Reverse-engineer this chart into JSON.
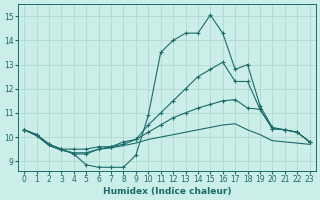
{
  "xlabel": "Humidex (Indice chaleur)",
  "xlim": [
    -0.5,
    23.5
  ],
  "ylim": [
    8.6,
    15.5
  ],
  "yticks": [
    9,
    10,
    11,
    12,
    13,
    14,
    15
  ],
  "xticks": [
    0,
    1,
    2,
    3,
    4,
    5,
    6,
    7,
    8,
    9,
    10,
    11,
    12,
    13,
    14,
    15,
    16,
    17,
    18,
    19,
    20,
    21,
    22,
    23
  ],
  "bg_color": "#cceee8",
  "grid_color": "#aad4cc",
  "line_color": "#1a6b6b",
  "line1_x": [
    0,
    1,
    2,
    3,
    4,
    5,
    6,
    7,
    8,
    9,
    10,
    11,
    12,
    13,
    14,
    15,
    16,
    17,
    18,
    19,
    20,
    21,
    22,
    23
  ],
  "line1_y": [
    10.3,
    10.1,
    9.7,
    9.5,
    9.3,
    8.85,
    8.75,
    8.75,
    8.75,
    9.25,
    10.9,
    13.5,
    14.0,
    14.3,
    14.3,
    15.05,
    14.3,
    12.8,
    13.0,
    11.3,
    10.4,
    10.3,
    10.2,
    9.8
  ],
  "line2_x": [
    0,
    1,
    2,
    3,
    4,
    5,
    6,
    7,
    8,
    9,
    10,
    11,
    12,
    13,
    14,
    15,
    16,
    17,
    18,
    19,
    20,
    21,
    22,
    23
  ],
  "line2_y": [
    10.3,
    10.1,
    9.7,
    9.5,
    9.3,
    9.3,
    9.5,
    9.6,
    9.8,
    9.9,
    10.5,
    11.0,
    11.5,
    12.0,
    12.5,
    12.8,
    13.1,
    12.3,
    12.3,
    11.15,
    10.35,
    10.3,
    10.2,
    9.8
  ],
  "line3_x": [
    0,
    1,
    2,
    3,
    4,
    5,
    6,
    7,
    8,
    9,
    10,
    11,
    12,
    13,
    14,
    15,
    16,
    17,
    18,
    19,
    20,
    21,
    22,
    23
  ],
  "line3_y": [
    10.3,
    10.1,
    9.7,
    9.5,
    9.5,
    9.5,
    9.6,
    9.6,
    9.7,
    9.9,
    10.2,
    10.5,
    10.8,
    11.0,
    11.2,
    11.35,
    11.5,
    11.55,
    11.2,
    11.15,
    10.35,
    10.3,
    10.2,
    9.8
  ],
  "line4_x": [
    0,
    1,
    2,
    3,
    4,
    5,
    6,
    7,
    8,
    9,
    10,
    11,
    12,
    13,
    14,
    15,
    16,
    17,
    18,
    19,
    20,
    21,
    22,
    23
  ],
  "line4_y": [
    10.3,
    10.05,
    9.65,
    9.45,
    9.35,
    9.35,
    9.5,
    9.55,
    9.65,
    9.75,
    9.9,
    10.0,
    10.1,
    10.2,
    10.3,
    10.4,
    10.5,
    10.55,
    10.3,
    10.1,
    9.85,
    9.8,
    9.75,
    9.7
  ]
}
